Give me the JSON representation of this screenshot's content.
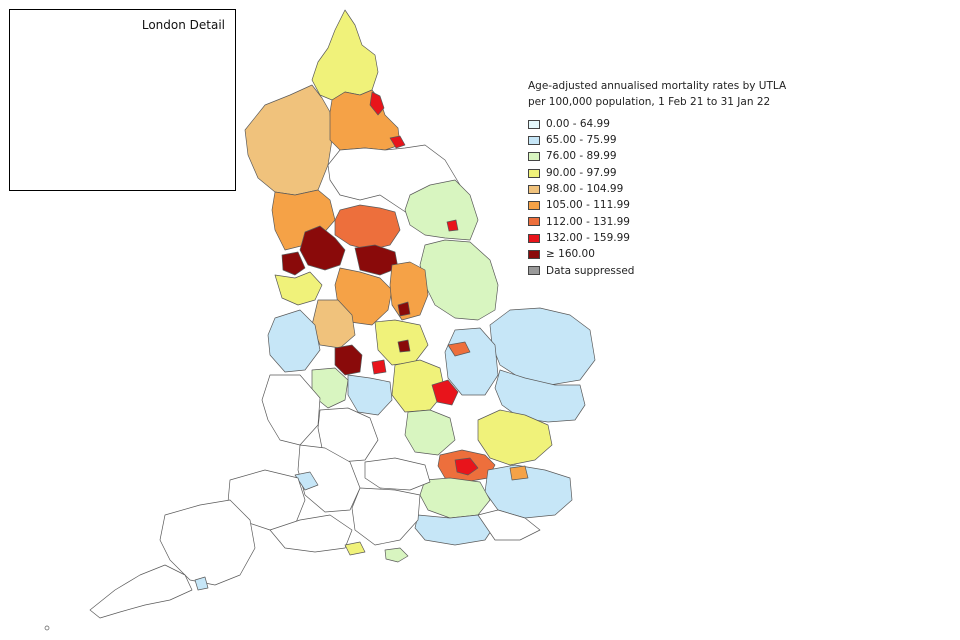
{
  "inset": {
    "title": "London Detail"
  },
  "legend": {
    "title_line1": "Age-adjusted annualised mortality rates by UTLA",
    "title_line2": "per 100,000 population, 1 Feb 21 to 31 Jan 22",
    "items": [
      {
        "label": "0.00 - 64.99",
        "color": "#e4f7fb"
      },
      {
        "label": "65.00 - 75.99",
        "color": "#c6e6f7"
      },
      {
        "label": "76.00 - 89.99",
        "color": "#d8f5c0"
      },
      {
        "label": "90.00 - 97.99",
        "color": "#f0f27a"
      },
      {
        "label": "98.00 - 104.99",
        "color": "#f0c27c"
      },
      {
        "label": "105.00 - 111.99",
        "color": "#f5a247"
      },
      {
        "label": "112.00 - 131.99",
        "color": "#ed6f3c"
      },
      {
        "label": "132.00 - 159.99",
        "color": "#e8141b"
      },
      {
        "label": "≥ 160.00",
        "color": "#8a0a0a"
      },
      {
        "label": "Data suppressed",
        "color": "#9a9a9a"
      }
    ]
  }
}
